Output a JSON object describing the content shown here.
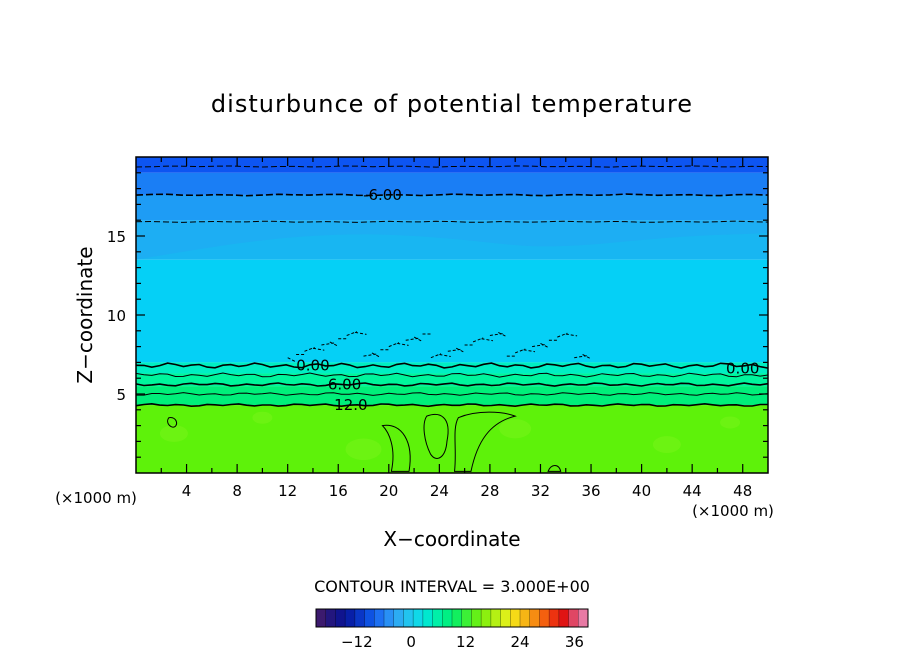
{
  "chart_data": {
    "type": "heatmap",
    "title": "disturbunce of potential temperature",
    "xlabel": "X−coordinate",
    "ylabel": "Z−coordinate",
    "x_unit": "(×1000 m)",
    "y_unit": "(×1000 m)",
    "xlim": [
      0,
      50
    ],
    "ylim": [
      0,
      20
    ],
    "x_ticks": [
      4,
      8,
      12,
      16,
      20,
      24,
      28,
      32,
      36,
      40,
      44,
      48
    ],
    "y_ticks": [
      5,
      10,
      15
    ],
    "contour_interval_text": "CONTOUR INTERVAL = 3.000E+00",
    "contour_labels": [
      {
        "text": "-6.00",
        "x": 19.5,
        "z": 17.6
      },
      {
        "text": "0.00",
        "x": 14.0,
        "z": 6.8
      },
      {
        "text": "0.00",
        "x": 48.0,
        "z": 6.6
      },
      {
        "text": "6.00",
        "x": 16.5,
        "z": 5.6
      },
      {
        "text": "12.0",
        "x": 17.0,
        "z": 4.3
      }
    ],
    "field_layers": [
      {
        "z_min": 19.0,
        "z_max": 20.0,
        "value": -7.5,
        "color": "#0d55f2"
      },
      {
        "z_min": 17.6,
        "z_max": 19.0,
        "value": -6.0,
        "color": "#1a7ef5"
      },
      {
        "z_min": 16.0,
        "z_max": 17.6,
        "value": -4.5,
        "color": "#1e9cf5"
      },
      {
        "z_min": 13.5,
        "z_max": 16.0,
        "value": -3.0,
        "color": "#18b6f2"
      },
      {
        "z_min": 7.0,
        "z_max": 13.5,
        "value": -1.5,
        "color": "#05d0f6"
      },
      {
        "z_min": 6.3,
        "z_max": 7.0,
        "value": 3.0,
        "color": "#00efc3"
      },
      {
        "z_min": 5.5,
        "z_max": 6.3,
        "value": 6.0,
        "color": "#00f59c"
      },
      {
        "z_min": 4.3,
        "z_max": 5.5,
        "value": 9.0,
        "color": "#00ef7a"
      },
      {
        "z_min": 0.0,
        "z_max": 4.3,
        "value": 13.5,
        "color": "#5ef20a"
      }
    ],
    "colorbar": {
      "ticks": [
        -12,
        0,
        12,
        24,
        36
      ],
      "min": -21,
      "max": 39,
      "step": 3,
      "colors": [
        "#3c1a6e",
        "#23167e",
        "#10148f",
        "#081fa8",
        "#0a36c6",
        "#0e52e2",
        "#1d70f2",
        "#2990f5",
        "#2cacf3",
        "#22c4ef",
        "#10d8e8",
        "#00e8cf",
        "#00f0a8",
        "#00f083",
        "#12ef5e",
        "#3cf037",
        "#64f018",
        "#8cf00f",
        "#b4f014",
        "#dcf019",
        "#f5da17",
        "#f6b515",
        "#f68c12",
        "#f4600f",
        "#ec3310",
        "#e01414",
        "#e04664",
        "#e87aa4"
      ]
    }
  }
}
